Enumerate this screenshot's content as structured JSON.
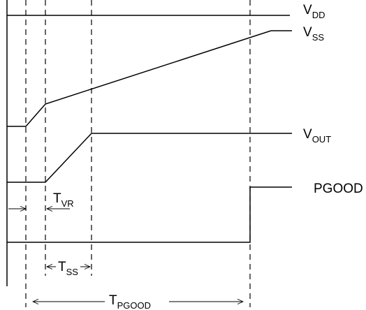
{
  "signals": {
    "vdd": {
      "main": "V",
      "sub": "DD"
    },
    "vss": {
      "main": "V",
      "sub": "SS"
    },
    "vout": {
      "main": "V",
      "sub": "OUT"
    },
    "pgood": "PGOOD"
  },
  "intervals": {
    "tvr": {
      "main": "T",
      "sub": "VR"
    },
    "tss": {
      "main": "T",
      "sub": "SS"
    },
    "tpgood": {
      "main": "T",
      "sub": "PGOOD"
    }
  },
  "colors": {
    "line": "#000000",
    "background": "#ffffff"
  }
}
